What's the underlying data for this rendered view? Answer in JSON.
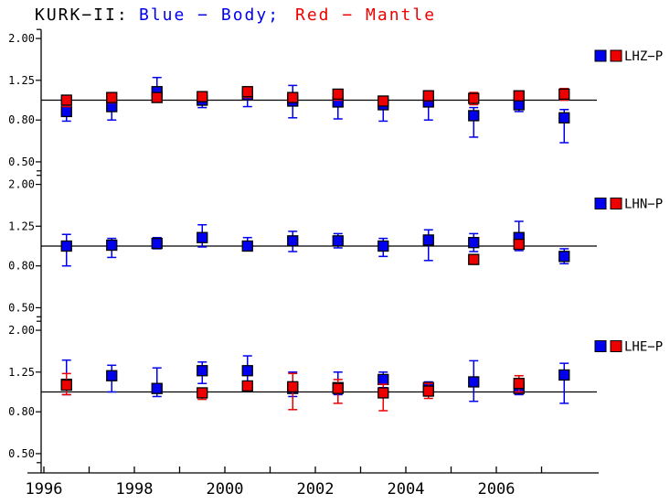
{
  "title": {
    "prefix": "KURK−II:",
    "blue_label": "Blue − Body;",
    "red_label": "Red − Mantle"
  },
  "colors": {
    "body": "#0000ee",
    "mantle": "#ee0000",
    "axis": "#000000",
    "background": "#ffffff"
  },
  "x_axis": {
    "tick_years": [
      1996,
      1997,
      1998,
      1999,
      2000,
      2001,
      2002,
      2003,
      2004,
      2005,
      2006,
      2007
    ],
    "labeled_years": [
      1996,
      1998,
      2000,
      2002,
      2004,
      2006
    ],
    "labels": [
      "1996",
      "1998",
      "2000",
      "2002",
      "2004",
      "2006"
    ]
  },
  "chart_data": [
    {
      "type": "scatter",
      "panel": "top",
      "legend": "LHZ−P",
      "yscale": "log",
      "ytick_values": [
        2.0,
        1.25,
        0.8,
        0.5
      ],
      "ytick_labels": [
        "2.00",
        "1.25",
        "0.80",
        "0.50"
      ],
      "reference_line": 1.0,
      "ylim": [
        0.45,
        2.2
      ],
      "x": [
        1996.5,
        1997.5,
        1998.5,
        1999.5,
        2000.5,
        2001.5,
        2002.5,
        2003.5,
        2004.5,
        2005.5,
        2006.5,
        2007.5
      ],
      "series": [
        {
          "name": "Body",
          "color_key": "body",
          "values": [
            0.88,
            0.93,
            1.1,
            1.0,
            1.06,
            0.99,
            0.98,
            0.95,
            0.98,
            0.84,
            0.95,
            0.82
          ],
          "err_lo": [
            0.79,
            0.8,
            1.0,
            0.92,
            0.93,
            0.82,
            0.81,
            0.79,
            0.8,
            0.66,
            0.88,
            0.62
          ],
          "err_hi": [
            0.95,
            1.0,
            1.29,
            1.06,
            1.12,
            1.18,
            1.08,
            1.04,
            1.06,
            0.92,
            1.02,
            0.9
          ]
        },
        {
          "name": "Mantle",
          "color_key": "mantle",
          "values": [
            1.0,
            1.03,
            1.03,
            1.04,
            1.1,
            1.03,
            1.07,
            0.99,
            1.05,
            1.02,
            1.05,
            1.07
          ],
          "err_lo": [
            0.93,
            0.97,
            0.98,
            0.99,
            1.03,
            0.98,
            1.0,
            0.94,
            0.99,
            0.95,
            1.0,
            1.0
          ],
          "err_hi": [
            1.05,
            1.08,
            1.08,
            1.1,
            1.16,
            1.08,
            1.12,
            1.04,
            1.11,
            1.09,
            1.1,
            1.14
          ]
        }
      ]
    },
    {
      "type": "scatter",
      "panel": "middle",
      "legend": "LHN−P",
      "yscale": "log",
      "ytick_values": [
        2.0,
        1.25,
        0.8,
        0.5
      ],
      "ytick_labels": [
        "2.00",
        "1.25",
        "0.80",
        "0.50"
      ],
      "reference_line": 1.0,
      "ylim": [
        0.45,
        2.2
      ],
      "x": [
        1996.5,
        1997.5,
        1998.5,
        1999.5,
        2000.5,
        2001.5,
        2002.5,
        2003.5,
        2004.5,
        2005.5,
        2006.5,
        2007.5
      ],
      "series": [
        {
          "name": "Body",
          "color_key": "body",
          "values": [
            1.0,
            1.01,
            1.03,
            1.1,
            1.0,
            1.06,
            1.06,
            1.0,
            1.07,
            1.04,
            1.1,
            0.89
          ],
          "err_lo": [
            0.8,
            0.88,
            0.97,
            0.99,
            0.95,
            0.94,
            0.98,
            0.89,
            0.85,
            0.94,
            0.95,
            0.82
          ],
          "err_hi": [
            1.14,
            1.09,
            1.1,
            1.27,
            1.1,
            1.18,
            1.15,
            1.09,
            1.2,
            1.15,
            1.32,
            0.97
          ]
        },
        {
          "name": "Mantle",
          "color_key": "mantle",
          "values": [
            null,
            null,
            null,
            null,
            null,
            null,
            null,
            null,
            null,
            0.86,
            1.02,
            null
          ],
          "err_lo": [
            null,
            null,
            null,
            null,
            null,
            null,
            null,
            null,
            null,
            0.83,
            0.97,
            null
          ],
          "err_hi": [
            null,
            null,
            null,
            null,
            null,
            null,
            null,
            null,
            null,
            0.89,
            1.07,
            null
          ]
        }
      ]
    },
    {
      "type": "scatter",
      "panel": "bottom",
      "legend": "LHE−P",
      "yscale": "log",
      "ytick_values": [
        2.0,
        1.25,
        0.8,
        0.5
      ],
      "ytick_labels": [
        "2.00",
        "1.25",
        "0.80",
        "0.50"
      ],
      "reference_line": 1.0,
      "ylim": [
        0.45,
        2.2
      ],
      "x": [
        1996.5,
        1997.5,
        1998.5,
        1999.5,
        2000.5,
        2001.5,
        2002.5,
        2003.5,
        2004.5,
        2005.5,
        2006.5,
        2007.5
      ],
      "series": [
        {
          "name": "Body",
          "color_key": "body",
          "values": [
            1.09,
            1.2,
            1.04,
            1.27,
            1.27,
            1.04,
            1.05,
            1.15,
            1.05,
            1.12,
            1.04,
            1.21
          ],
          "err_lo": [
            0.97,
            1.0,
            0.95,
            1.1,
            1.08,
            0.95,
            0.97,
            1.05,
            0.98,
            0.9,
            0.97,
            0.88
          ],
          "err_hi": [
            1.43,
            1.35,
            1.31,
            1.4,
            1.5,
            1.25,
            1.25,
            1.25,
            1.12,
            1.42,
            1.12,
            1.38
          ]
        },
        {
          "name": "Mantle",
          "color_key": "mantle",
          "values": [
            1.08,
            null,
            null,
            0.99,
            1.07,
            1.06,
            1.04,
            0.99,
            1.01,
            null,
            1.1,
            null
          ],
          "err_lo": [
            0.97,
            null,
            null,
            0.92,
            1.02,
            0.82,
            0.88,
            0.81,
            0.93,
            null,
            1.0,
            null
          ],
          "err_hi": [
            1.23,
            null,
            null,
            1.04,
            1.12,
            1.23,
            1.15,
            1.09,
            1.1,
            null,
            1.2,
            null
          ]
        }
      ]
    }
  ]
}
